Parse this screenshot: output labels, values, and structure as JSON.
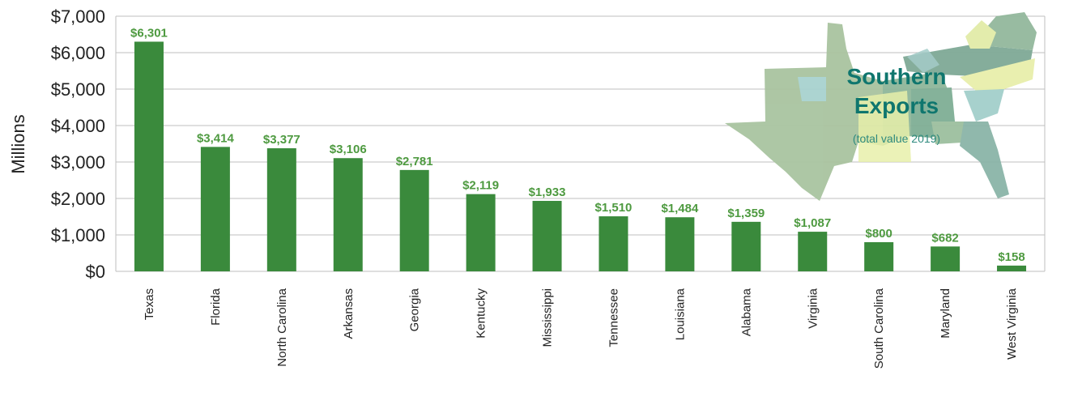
{
  "chart_data": {
    "type": "bar",
    "title": "",
    "ylabel": "Millions",
    "xlabel": "",
    "ylim": [
      0,
      7000
    ],
    "yticks": [
      0,
      1000,
      2000,
      3000,
      4000,
      5000,
      6000,
      7000
    ],
    "ytick_labels": [
      "$0",
      "$1,000",
      "$2,000",
      "$3,000",
      "$4,000",
      "$5,000",
      "$6,000",
      "$7,000"
    ],
    "grid": true,
    "categories": [
      "Texas",
      "Florida",
      "North Carolina",
      "Arkansas",
      "Georgia",
      "Kentucky",
      "Mississippi",
      "Tennessee",
      "Louisiana",
      "Alabama",
      "Virginia",
      "South Carolina",
      "Maryland",
      "West Virginia"
    ],
    "values": [
      6301,
      3414,
      3377,
      3106,
      2781,
      2119,
      1933,
      1510,
      1484,
      1359,
      1087,
      800,
      682,
      158
    ],
    "value_labels": [
      "$6,301",
      "$3,414",
      "$3,377",
      "$3,106",
      "$2,781",
      "$2,119",
      "$1,933",
      "$1,510",
      "$1,484",
      "$1,359",
      "$1,087",
      "$800",
      "$682",
      "$158"
    ],
    "inset": {
      "title_line1": "Southern",
      "title_line2": "Exports",
      "subtitle": "(total value 2019)"
    },
    "colors": {
      "bar": "#3a8a3c",
      "value_label": "#4e9a40",
      "inset_title": "#0f766e",
      "grid": "#bfbfbf"
    }
  }
}
